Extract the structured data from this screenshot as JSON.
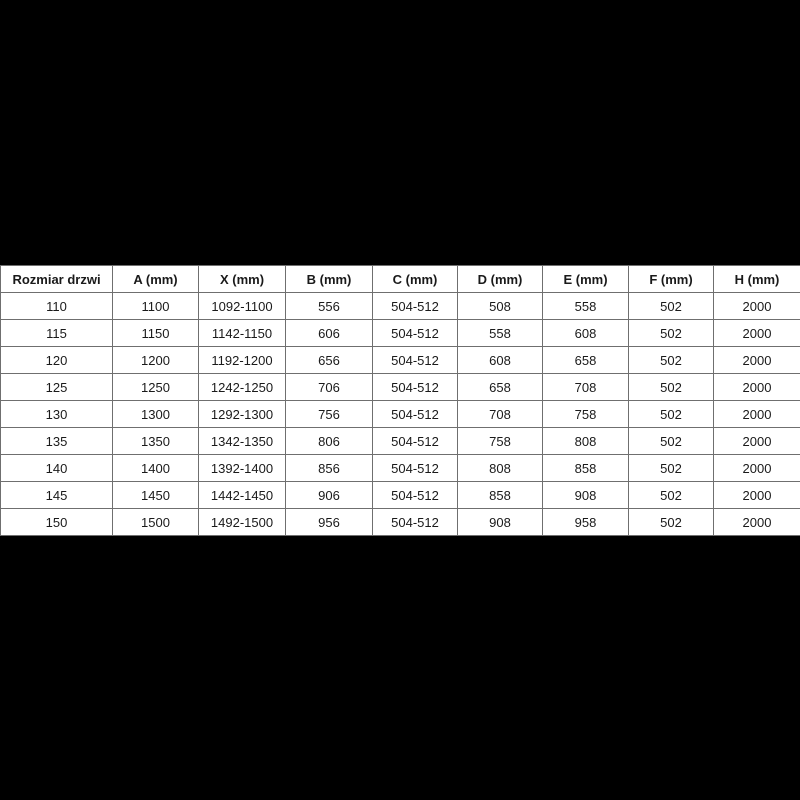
{
  "colors": {
    "background": "#000000",
    "table_background": "#ffffff",
    "border": "#6f6f6f",
    "text": "#1a1a1a"
  },
  "chart_data": {
    "type": "table",
    "title": "",
    "columns": [
      "Rozmiar drzwi",
      "A (mm)",
      "X (mm)",
      "B (mm)",
      "C (mm)",
      "D (mm)",
      "E (mm)",
      "F (mm)",
      "H (mm)"
    ],
    "rows": [
      [
        "110",
        "1100",
        "1092-1100",
        "556",
        "504-512",
        "508",
        "558",
        "502",
        "2000"
      ],
      [
        "115",
        "1150",
        "1142-1150",
        "606",
        "504-512",
        "558",
        "608",
        "502",
        "2000"
      ],
      [
        "120",
        "1200",
        "1192-1200",
        "656",
        "504-512",
        "608",
        "658",
        "502",
        "2000"
      ],
      [
        "125",
        "1250",
        "1242-1250",
        "706",
        "504-512",
        "658",
        "708",
        "502",
        "2000"
      ],
      [
        "130",
        "1300",
        "1292-1300",
        "756",
        "504-512",
        "708",
        "758",
        "502",
        "2000"
      ],
      [
        "135",
        "1350",
        "1342-1350",
        "806",
        "504-512",
        "758",
        "808",
        "502",
        "2000"
      ],
      [
        "140",
        "1400",
        "1392-1400",
        "856",
        "504-512",
        "808",
        "858",
        "502",
        "2000"
      ],
      [
        "145",
        "1450",
        "1442-1450",
        "906",
        "504-512",
        "858",
        "908",
        "502",
        "2000"
      ],
      [
        "150",
        "1500",
        "1492-1500",
        "956",
        "504-512",
        "908",
        "958",
        "502",
        "2000"
      ]
    ]
  }
}
